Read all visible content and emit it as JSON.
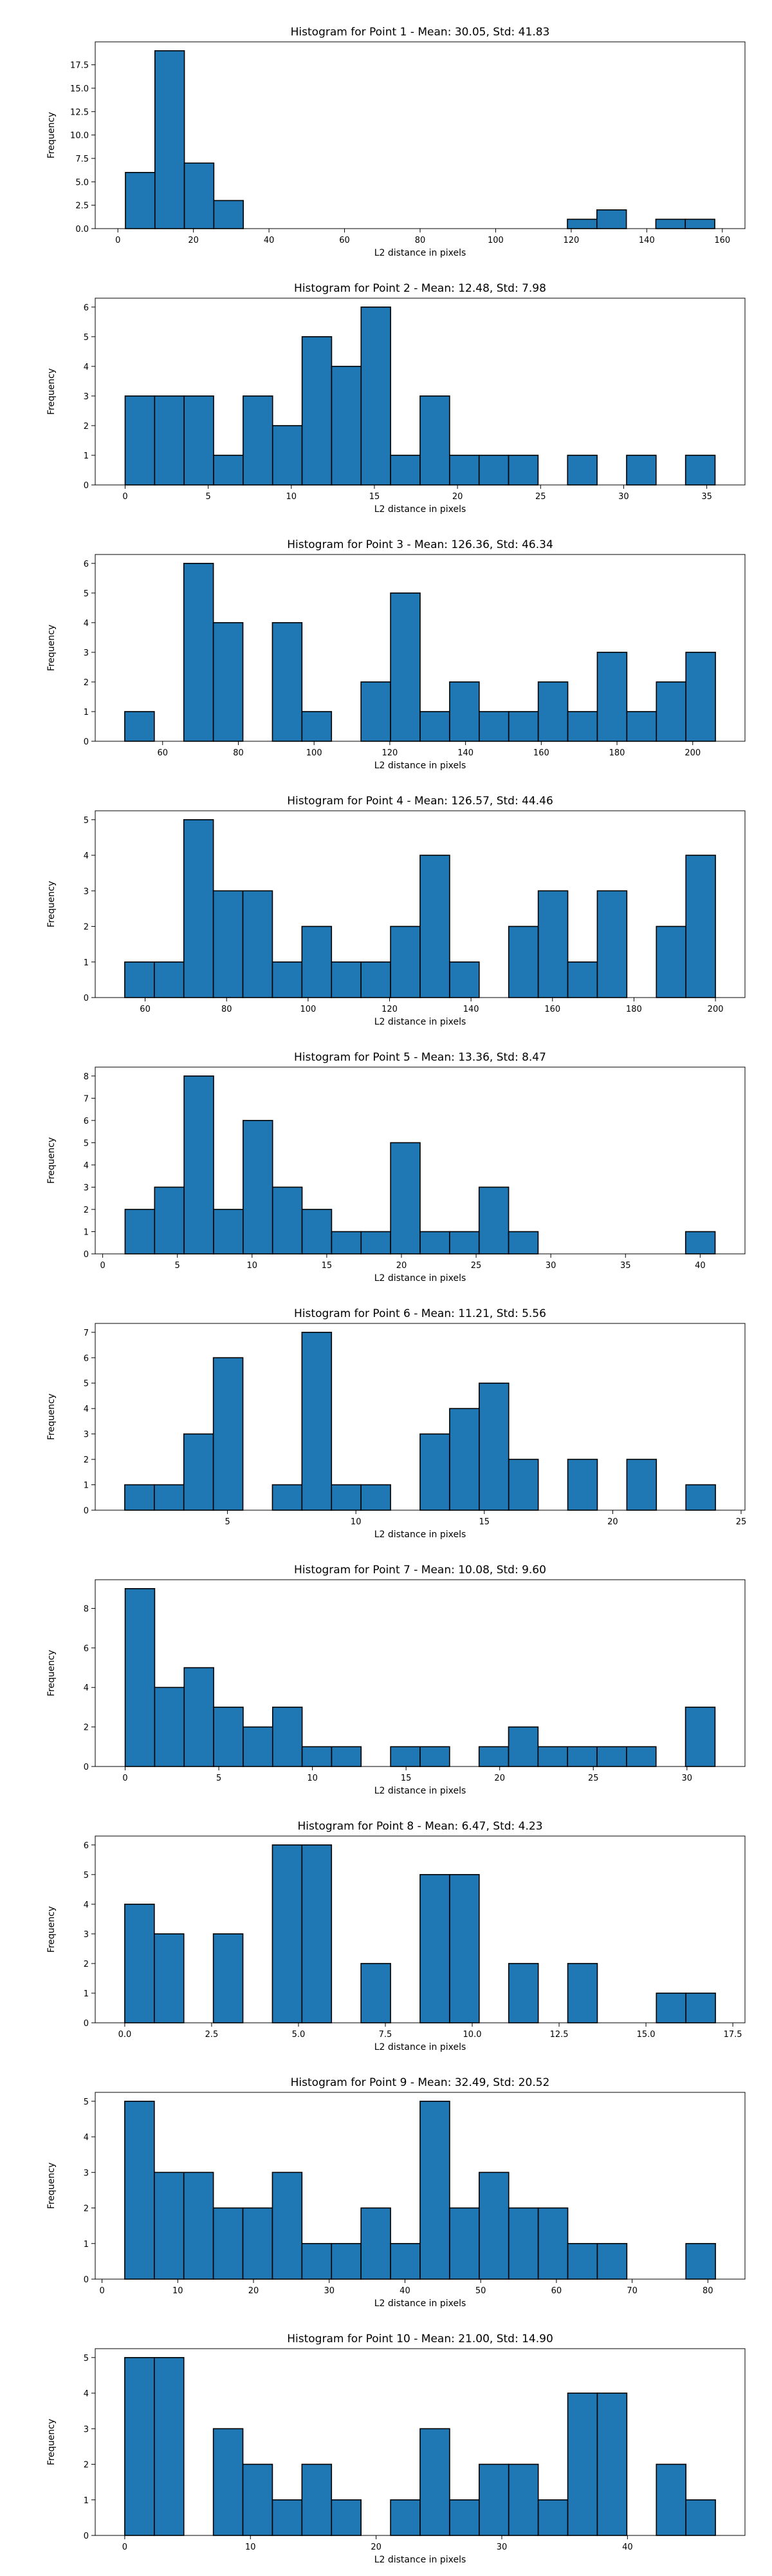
{
  "figure": {
    "background": "#ffffff",
    "bar_color": "#1f77b4",
    "edge_color": "#000000"
  },
  "chart_data": [
    {
      "type": "bar",
      "title": "Histogram for Point 1 - Mean: 30.05, Std: 41.83",
      "xlabel": "L2 distance in pixels",
      "ylabel": "Frequency",
      "grid": false,
      "bin_edges": [
        2,
        9.8,
        17.6,
        25.4,
        33.2,
        41,
        48.8,
        56.6,
        64.4,
        72.2,
        80,
        87.8,
        95.6,
        103.4,
        111.2,
        119,
        126.8,
        134.6,
        142.4,
        150.2,
        158
      ],
      "counts": [
        6,
        19,
        7,
        3,
        0,
        0,
        0,
        0,
        0,
        0,
        0,
        0,
        0,
        0,
        0,
        1,
        2,
        0,
        1,
        1
      ],
      "xlim": [
        -6,
        166
      ],
      "ylim": [
        0,
        19.95
      ],
      "xticks": [
        0,
        20,
        40,
        60,
        80,
        100,
        120,
        140,
        160
      ],
      "xtick_labels": [
        "0",
        "20",
        "40",
        "60",
        "80",
        "100",
        "120",
        "140",
        "160"
      ],
      "yticks": [
        0,
        2.5,
        5,
        7.5,
        10,
        12.5,
        15,
        17.5
      ],
      "ytick_labels": [
        "0.0",
        "2.5",
        "5.0",
        "7.5",
        "10.0",
        "12.5",
        "15.0",
        "17.5"
      ]
    },
    {
      "type": "bar",
      "title": "Histogram for Point 2 - Mean: 12.48, Std: 7.98",
      "xlabel": "L2 distance in pixels",
      "ylabel": "Frequency",
      "grid": false,
      "bin_edges": [
        0,
        1.775,
        3.55,
        5.325,
        7.1,
        8.875,
        10.65,
        12.425,
        14.2,
        15.975,
        17.75,
        19.525,
        21.3,
        23.075,
        24.85,
        26.625,
        28.4,
        30.175,
        31.95,
        33.725,
        35.5
      ],
      "counts": [
        3,
        3,
        3,
        1,
        3,
        2,
        5,
        4,
        6,
        1,
        3,
        1,
        1,
        1,
        0,
        1,
        0,
        1,
        0,
        1
      ],
      "xlim": [
        -1.8,
        37.3
      ],
      "ylim": [
        0,
        6.3
      ],
      "xticks": [
        0,
        5,
        10,
        15,
        20,
        25,
        30,
        35
      ],
      "xtick_labels": [
        "0",
        "5",
        "10",
        "15",
        "20",
        "25",
        "30",
        "35"
      ],
      "yticks": [
        0,
        1,
        2,
        3,
        4,
        5,
        6
      ],
      "ytick_labels": [
        "0",
        "1",
        "2",
        "3",
        "4",
        "5",
        "6"
      ]
    },
    {
      "type": "bar",
      "title": "Histogram for Point 3 - Mean: 126.36, Std: 46.34",
      "xlabel": "L2 distance in pixels",
      "ylabel": "Frequency",
      "grid": false,
      "bin_edges": [
        50,
        57.8,
        65.6,
        73.4,
        81.2,
        89,
        96.8,
        104.6,
        112.4,
        120.2,
        128,
        135.8,
        143.6,
        151.4,
        159.2,
        167,
        174.8,
        182.6,
        190.4,
        198.2,
        206
      ],
      "counts": [
        1,
        0,
        6,
        4,
        0,
        4,
        1,
        0,
        2,
        5,
        1,
        2,
        1,
        1,
        2,
        1,
        3,
        1,
        2,
        3
      ],
      "xlim": [
        42.2,
        213.8
      ],
      "ylim": [
        0,
        6.3
      ],
      "xticks": [
        60,
        80,
        100,
        120,
        140,
        160,
        180,
        200
      ],
      "xtick_labels": [
        "60",
        "80",
        "100",
        "120",
        "140",
        "160",
        "180",
        "200"
      ],
      "yticks": [
        0,
        1,
        2,
        3,
        4,
        5,
        6
      ],
      "ytick_labels": [
        "0",
        "1",
        "2",
        "3",
        "4",
        "5",
        "6"
      ]
    },
    {
      "type": "bar",
      "title": "Histogram for Point 4 - Mean: 126.57, Std: 44.46",
      "xlabel": "L2 distance in pixels",
      "ylabel": "Frequency",
      "grid": false,
      "bin_edges": [
        55,
        62.25,
        69.5,
        76.75,
        84,
        91.25,
        98.5,
        105.75,
        113,
        120.25,
        127.5,
        134.75,
        142,
        149.25,
        156.5,
        163.75,
        171,
        178.25,
        185.5,
        192.75,
        200
      ],
      "counts": [
        1,
        1,
        5,
        3,
        3,
        1,
        2,
        1,
        1,
        2,
        4,
        1,
        0,
        2,
        3,
        1,
        3,
        0,
        2,
        4
      ],
      "xlim": [
        47.75,
        207.25
      ],
      "ylim": [
        0,
        5.25
      ],
      "xticks": [
        60,
        80,
        100,
        120,
        140,
        160,
        180,
        200
      ],
      "xtick_labels": [
        "60",
        "80",
        "100",
        "120",
        "140",
        "160",
        "180",
        "200"
      ],
      "yticks": [
        0,
        1,
        2,
        3,
        4,
        5
      ],
      "ytick_labels": [
        "0",
        "1",
        "2",
        "3",
        "4",
        "5"
      ]
    },
    {
      "type": "bar",
      "title": "Histogram for Point 5 - Mean: 13.36, Std: 8.47",
      "xlabel": "L2 distance in pixels",
      "ylabel": "Frequency",
      "grid": false,
      "bin_edges": [
        1.5,
        3.475,
        5.45,
        7.425,
        9.4,
        11.375,
        13.35,
        15.325,
        17.3,
        19.275,
        21.25,
        23.225,
        25.2,
        27.175,
        29.15,
        31.125,
        33.1,
        35.075,
        37.05,
        39.025,
        41
      ],
      "counts": [
        2,
        3,
        8,
        2,
        6,
        3,
        2,
        1,
        1,
        5,
        1,
        1,
        3,
        1,
        0,
        0,
        0,
        0,
        0,
        1
      ],
      "xlim": [
        -0.5,
        43
      ],
      "ylim": [
        0,
        8.4
      ],
      "xticks": [
        0,
        5,
        10,
        15,
        20,
        25,
        30,
        35,
        40
      ],
      "xtick_labels": [
        "0",
        "5",
        "10",
        "15",
        "20",
        "25",
        "30",
        "35",
        "40"
      ],
      "yticks": [
        0,
        1,
        2,
        3,
        4,
        5,
        6,
        7,
        8
      ],
      "ytick_labels": [
        "0",
        "1",
        "2",
        "3",
        "4",
        "5",
        "6",
        "7",
        "8"
      ]
    },
    {
      "type": "bar",
      "title": "Histogram for Point 6 - Mean: 11.21, Std: 5.56",
      "xlabel": "L2 distance in pixels",
      "ylabel": "Frequency",
      "grid": false,
      "bin_edges": [
        1,
        2.15,
        3.3,
        4.45,
        5.6,
        6.75,
        7.9,
        9.05,
        10.2,
        11.35,
        12.5,
        13.65,
        14.8,
        15.95,
        17.1,
        18.25,
        19.4,
        20.55,
        21.7,
        22.85,
        24
      ],
      "counts": [
        1,
        1,
        3,
        6,
        0,
        1,
        7,
        1,
        1,
        0,
        3,
        4,
        5,
        2,
        0,
        2,
        0,
        2,
        0,
        1
      ],
      "xlim": [
        -0.15,
        25.15
      ],
      "ylim": [
        0,
        7.35
      ],
      "xticks": [
        5,
        10,
        15,
        20,
        25
      ],
      "xtick_labels": [
        "5",
        "10",
        "15",
        "20",
        "25"
      ],
      "yticks": [
        0,
        1,
        2,
        3,
        4,
        5,
        6,
        7
      ],
      "ytick_labels": [
        "0",
        "1",
        "2",
        "3",
        "4",
        "5",
        "6",
        "7"
      ]
    },
    {
      "type": "bar",
      "title": "Histogram for Point 7 - Mean: 10.08, Std: 9.60",
      "xlabel": "L2 distance in pixels",
      "ylabel": "Frequency",
      "grid": false,
      "bin_edges": [
        0,
        1.575,
        3.15,
        4.725,
        6.3,
        7.875,
        9.45,
        11.025,
        12.6,
        14.175,
        15.75,
        17.325,
        18.9,
        20.475,
        22.05,
        23.625,
        25.2,
        26.775,
        28.35,
        29.925,
        31.5
      ],
      "counts": [
        9,
        4,
        5,
        3,
        2,
        3,
        1,
        1,
        0,
        1,
        1,
        0,
        1,
        2,
        1,
        1,
        1,
        1,
        0,
        3
      ],
      "xlim": [
        -1.6,
        33.1
      ],
      "ylim": [
        0,
        9.45
      ],
      "xticks": [
        0,
        5,
        10,
        15,
        20,
        25,
        30
      ],
      "xtick_labels": [
        "0",
        "5",
        "10",
        "15",
        "20",
        "25",
        "30"
      ],
      "yticks": [
        0,
        2,
        4,
        6,
        8
      ],
      "ytick_labels": [
        "0",
        "2",
        "4",
        "6",
        "8"
      ]
    },
    {
      "type": "bar",
      "title": "Histogram for Point 8 - Mean: 6.47, Std: 4.23",
      "xlabel": "L2 distance in pixels",
      "ylabel": "Frequency",
      "grid": false,
      "bin_edges": [
        0,
        0.85,
        1.7,
        2.55,
        3.4,
        4.25,
        5.1,
        5.95,
        6.8,
        7.65,
        8.5,
        9.35,
        10.2,
        11.05,
        11.9,
        12.75,
        13.6,
        14.45,
        15.3,
        16.15,
        17
      ],
      "counts": [
        4,
        3,
        0,
        3,
        0,
        6,
        6,
        0,
        2,
        0,
        5,
        5,
        0,
        2,
        0,
        2,
        0,
        0,
        1,
        1
      ],
      "xlim": [
        -0.85,
        17.85
      ],
      "ylim": [
        0,
        6.3
      ],
      "xticks": [
        0,
        2.5,
        5,
        7.5,
        10,
        12.5,
        15,
        17.5
      ],
      "xtick_labels": [
        "0.0",
        "2.5",
        "5.0",
        "7.5",
        "10.0",
        "12.5",
        "15.0",
        "17.5"
      ],
      "yticks": [
        0,
        1,
        2,
        3,
        4,
        5,
        6
      ],
      "ytick_labels": [
        "0",
        "1",
        "2",
        "3",
        "4",
        "5",
        "6"
      ]
    },
    {
      "type": "bar",
      "title": "Histogram for Point 9 - Mean: 32.49, Std: 20.52",
      "xlabel": "L2 distance in pixels",
      "ylabel": "Frequency",
      "grid": false,
      "bin_edges": [
        3,
        6.9,
        10.8,
        14.7,
        18.6,
        22.5,
        26.4,
        30.3,
        34.2,
        38.1,
        42,
        45.9,
        49.8,
        53.7,
        57.6,
        61.5,
        65.4,
        69.3,
        73.2,
        77.1,
        81
      ],
      "counts": [
        5,
        3,
        3,
        2,
        2,
        3,
        1,
        1,
        2,
        1,
        5,
        2,
        3,
        2,
        2,
        1,
        1,
        0,
        0,
        1
      ],
      "xlim": [
        -0.9,
        84.9
      ],
      "ylim": [
        0,
        5.25
      ],
      "xticks": [
        0,
        10,
        20,
        30,
        40,
        50,
        60,
        70,
        80
      ],
      "xtick_labels": [
        "0",
        "10",
        "20",
        "30",
        "40",
        "50",
        "60",
        "70",
        "80"
      ],
      "yticks": [
        0,
        1,
        2,
        3,
        4,
        5
      ],
      "ytick_labels": [
        "0",
        "1",
        "2",
        "3",
        "4",
        "5"
      ]
    },
    {
      "type": "bar",
      "title": "Histogram for Point 10 - Mean: 21.00, Std: 14.90",
      "xlabel": "L2 distance in pixels",
      "ylabel": "Frequency",
      "grid": false,
      "bin_edges": [
        0,
        2.35,
        4.7,
        7.05,
        9.4,
        11.75,
        14.1,
        16.45,
        18.8,
        21.15,
        23.5,
        25.85,
        28.2,
        30.55,
        32.9,
        35.25,
        37.6,
        39.95,
        42.3,
        44.65,
        47
      ],
      "counts": [
        5,
        5,
        0,
        3,
        2,
        1,
        2,
        1,
        0,
        1,
        3,
        1,
        2,
        2,
        1,
        4,
        4,
        0,
        2,
        1
      ],
      "xlim": [
        -2.35,
        49.35
      ],
      "ylim": [
        0,
        5.25
      ],
      "xticks": [
        0,
        10,
        20,
        30,
        40
      ],
      "xtick_labels": [
        "0",
        "10",
        "20",
        "30",
        "40"
      ],
      "yticks": [
        0,
        1,
        2,
        3,
        4,
        5
      ],
      "ytick_labels": [
        "0",
        "1",
        "2",
        "3",
        "4",
        "5"
      ]
    }
  ]
}
